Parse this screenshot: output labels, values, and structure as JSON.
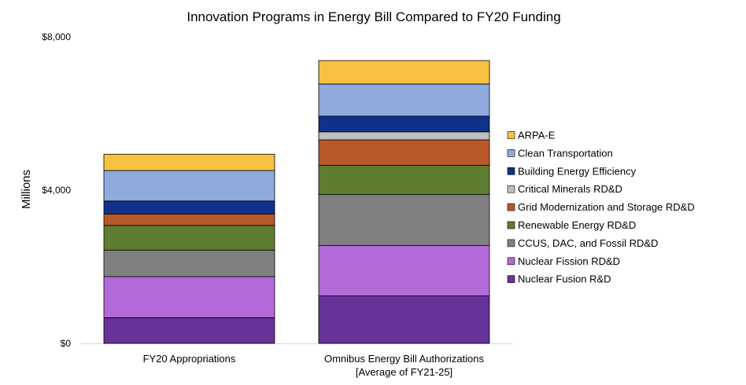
{
  "chart_data": {
    "type": "bar",
    "stacked": true,
    "title": "Innovation Programs in Energy Bill Compared to FY20 Funding",
    "ylabel": "Millions",
    "xlabel": "",
    "ylim": [
      0,
      8000
    ],
    "yticks": [
      "$0",
      "$4,000",
      "$8,000"
    ],
    "ytick_values": [
      0,
      4000,
      8000
    ],
    "grid": false,
    "legend_position": "right",
    "categories": [
      [
        "FY20 Appropriations"
      ],
      [
        "Omnibus Energy Bill Authorizations",
        "[Average of FY21-25]"
      ]
    ],
    "series": [
      {
        "name": "Nuclear Fusion R&D",
        "color": "#673399",
        "values": [
          671,
          1238
        ]
      },
      {
        "name": "Nuclear Fission RD&D",
        "color": "#b36ad9",
        "values": [
          1072,
          1314
        ]
      },
      {
        "name": "CCUS, DAC, and Fossil RD&D",
        "color": "#808080",
        "values": [
          693,
          1334
        ]
      },
      {
        "name": "Renewable Energy RD&D",
        "color": "#5f7d31",
        "values": [
          644,
          764
        ]
      },
      {
        "name": "Grid Modernization and Storage RD&D",
        "color": "#b8592a",
        "values": [
          298,
          663
        ]
      },
      {
        "name": "Critical Minerals RD&D",
        "color": "#bfbfbf",
        "values": [
          0,
          209
        ]
      },
      {
        "name": "Building Energy Efficiency",
        "color": "#10318a",
        "values": [
          339,
          408
        ]
      },
      {
        "name": "Clean Transportation",
        "color": "#8faadc",
        "values": [
          796,
          841
        ]
      },
      {
        "name": "ARPA-E",
        "color": "#f8c142",
        "values": [
          425,
          611
        ]
      }
    ]
  }
}
